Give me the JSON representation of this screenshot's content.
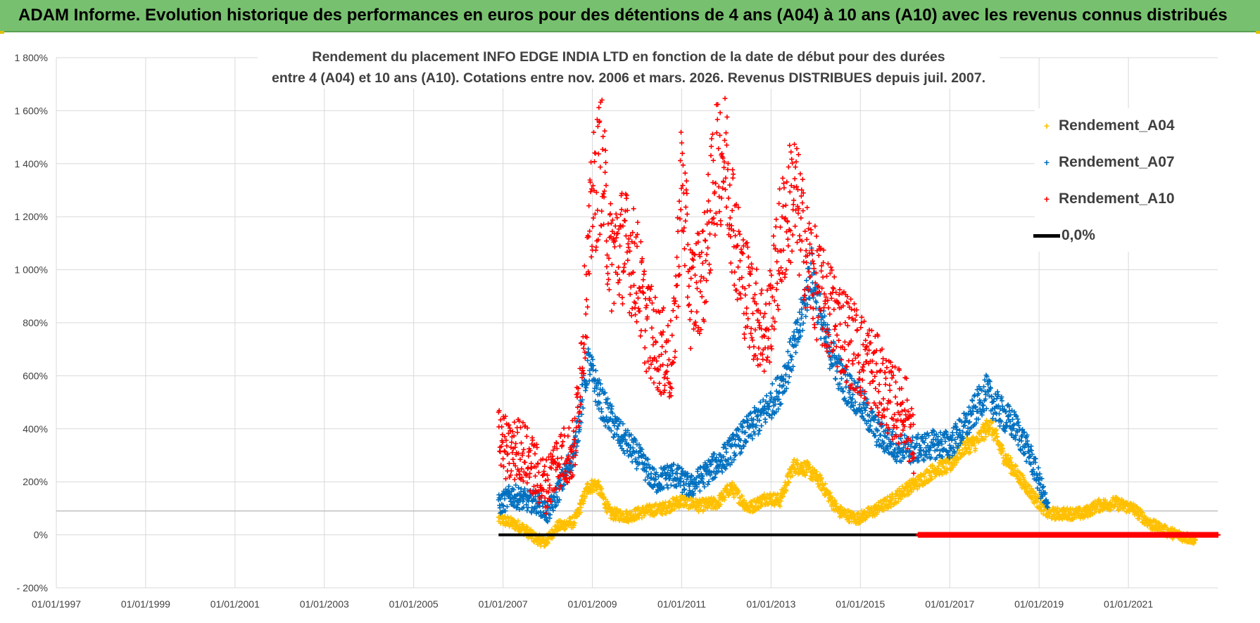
{
  "banner": {
    "title": "ADAM Informe. Evolution historique des performances en euros pour des détentions de 4 ans (A04) à 10 ans (A10) avec les revenus connus distribués"
  },
  "chart_data": {
    "type": "scatter",
    "title_line1": "Rendement du placement INFO EDGE INDIA LTD en fonction de la date de début pour des durées",
    "title_line2": "entre 4 (A04) et 10 ans (A10). Cotations entre nov. 2006 et mars. 2026. Revenus DISTRIBUES depuis juil. 2007.",
    "x_range": [
      "01/01/1997",
      "01/01/2023"
    ],
    "x_ticks": [
      "01/01/1997",
      "01/01/1999",
      "01/01/2001",
      "01/01/2003",
      "01/01/2005",
      "01/01/2007",
      "01/01/2009",
      "01/01/2011",
      "01/01/2013",
      "01/01/2015",
      "01/01/2017",
      "01/01/2019",
      "01/01/2021"
    ],
    "ylim": [
      -200,
      1800
    ],
    "y_ticks": [
      "- 200%",
      "0%",
      "200%",
      "400%",
      "600%",
      "800%",
      "1 000%",
      "1 200%",
      "1 400%",
      "1 600%",
      "1 800%"
    ],
    "grid": true,
    "legend_position": "top-right",
    "series": [
      {
        "name": "Rendement_A04",
        "color": "#ffc000",
        "marker": "+",
        "x_start": "2006.9",
        "x_end": "2022.5",
        "points": [
          [
            2006.9,
            60
          ],
          [
            2007.1,
            50
          ],
          [
            2007.4,
            30
          ],
          [
            2007.7,
            -10
          ],
          [
            2007.95,
            -30
          ],
          [
            2008.2,
            30
          ],
          [
            2008.6,
            50
          ],
          [
            2008.9,
            180
          ],
          [
            2009.1,
            190
          ],
          [
            2009.4,
            80
          ],
          [
            2009.8,
            70
          ],
          [
            2010.2,
            90
          ],
          [
            2010.6,
            100
          ],
          [
            2011.0,
            130
          ],
          [
            2011.4,
            110
          ],
          [
            2011.8,
            120
          ],
          [
            2012.1,
            180
          ],
          [
            2012.5,
            100
          ],
          [
            2012.9,
            140
          ],
          [
            2013.2,
            130
          ],
          [
            2013.5,
            260
          ],
          [
            2013.8,
            250
          ],
          [
            2014.1,
            200
          ],
          [
            2014.5,
            90
          ],
          [
            2014.9,
            60
          ],
          [
            2015.3,
            90
          ],
          [
            2015.7,
            130
          ],
          [
            2016.0,
            170
          ],
          [
            2016.3,
            200
          ],
          [
            2016.7,
            250
          ],
          [
            2017.0,
            260
          ],
          [
            2017.3,
            330
          ],
          [
            2017.6,
            350
          ],
          [
            2017.9,
            420
          ],
          [
            2018.2,
            300
          ],
          [
            2018.5,
            230
          ],
          [
            2018.9,
            140
          ],
          [
            2019.2,
            80
          ],
          [
            2019.6,
            80
          ],
          [
            2020.0,
            80
          ],
          [
            2020.3,
            110
          ],
          [
            2020.7,
            120
          ],
          [
            2021.1,
            100
          ],
          [
            2021.5,
            40
          ],
          [
            2021.9,
            10
          ],
          [
            2022.3,
            -10
          ],
          [
            2022.5,
            -15
          ]
        ]
      },
      {
        "name": "Rendement_A07",
        "color": "#0070c0",
        "marker": "+",
        "x_start": "2006.9",
        "x_end": "2019.2",
        "points": [
          [
            2006.9,
            110
          ],
          [
            2007.2,
            150
          ],
          [
            2007.5,
            130
          ],
          [
            2007.8,
            120
          ],
          [
            2008.0,
            80
          ],
          [
            2008.3,
            190
          ],
          [
            2008.6,
            320
          ],
          [
            2008.9,
            650
          ],
          [
            2009.2,
            500
          ],
          [
            2009.6,
            380
          ],
          [
            2010.0,
            300
          ],
          [
            2010.4,
            200
          ],
          [
            2010.8,
            230
          ],
          [
            2011.2,
            180
          ],
          [
            2011.6,
            240
          ],
          [
            2012.0,
            300
          ],
          [
            2012.4,
            380
          ],
          [
            2012.8,
            450
          ],
          [
            2013.2,
            550
          ],
          [
            2013.6,
            750
          ],
          [
            2013.9,
            1000
          ],
          [
            2014.2,
            750
          ],
          [
            2014.6,
            580
          ],
          [
            2015.0,
            500
          ],
          [
            2015.4,
            380
          ],
          [
            2015.8,
            330
          ],
          [
            2016.2,
            320
          ],
          [
            2016.6,
            340
          ],
          [
            2017.0,
            340
          ],
          [
            2017.4,
            420
          ],
          [
            2017.8,
            540
          ],
          [
            2018.1,
            470
          ],
          [
            2018.5,
            400
          ],
          [
            2018.8,
            300
          ],
          [
            2019.1,
            150
          ],
          [
            2019.2,
            90
          ]
        ]
      },
      {
        "name": "Rendement_A10",
        "color": "#ff0000",
        "marker": "+",
        "x_start": "2006.9",
        "x_end": "2016.2",
        "points": [
          [
            2006.9,
            420
          ],
          [
            2007.1,
            300
          ],
          [
            2007.4,
            330
          ],
          [
            2007.7,
            250
          ],
          [
            2007.95,
            180
          ],
          [
            2008.2,
            280
          ],
          [
            2008.6,
            320
          ],
          [
            2008.9,
            1000
          ],
          [
            2009.0,
            1250
          ],
          [
            2009.2,
            1420
          ],
          [
            2009.4,
            1050
          ],
          [
            2009.7,
            1100
          ],
          [
            2010.0,
            1000
          ],
          [
            2010.2,
            800
          ],
          [
            2010.5,
            700
          ],
          [
            2010.8,
            650
          ],
          [
            2011.0,
            1350
          ],
          [
            2011.2,
            900
          ],
          [
            2011.5,
            1000
          ],
          [
            2011.8,
            1450
          ],
          [
            2012.0,
            1400
          ],
          [
            2012.3,
            1000
          ],
          [
            2012.6,
            850
          ],
          [
            2012.9,
            750
          ],
          [
            2013.2,
            1100
          ],
          [
            2013.5,
            1300
          ],
          [
            2013.8,
            1050
          ],
          [
            2014.1,
            900
          ],
          [
            2014.5,
            800
          ],
          [
            2014.9,
            700
          ],
          [
            2015.3,
            620
          ],
          [
            2015.7,
            500
          ],
          [
            2016.0,
            480
          ],
          [
            2016.2,
            320
          ]
        ]
      },
      {
        "name": "0,0%",
        "color": "#000000",
        "marker": "line",
        "x_start": "2006.9",
        "x_end": "2016.3",
        "value": 0
      }
    ],
    "red_zero_band": {
      "x_start": "2016.3",
      "x_end": "2023.0",
      "value": 0
    }
  }
}
